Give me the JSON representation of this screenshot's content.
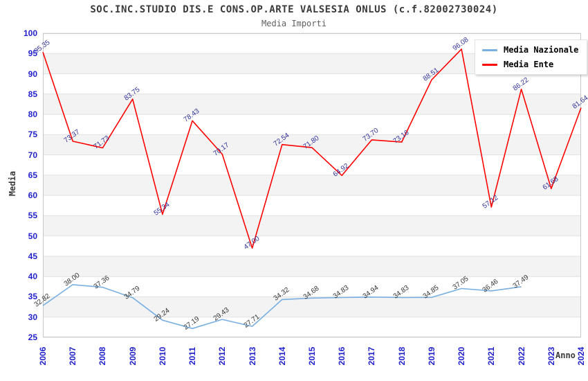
{
  "header": {
    "title": "SOC.INC.STUDIO DIS.E CONS.OP.ARTE VALSESIA ONLUS (c.f.82002730024)",
    "subtitle": "Media Importi"
  },
  "axes": {
    "y_label": "Media",
    "x_label": "Anno",
    "y_ticks": [
      100,
      95,
      90,
      85,
      80,
      75,
      70,
      65,
      60,
      55,
      50,
      45,
      40,
      35,
      30,
      25
    ]
  },
  "legend": {
    "items": [
      {
        "label": "Media Nazionale",
        "color": "#79afe1"
      },
      {
        "label": "Media Ente",
        "color": "#ff0000"
      }
    ]
  },
  "colors": {
    "tick_label": "#2222cc",
    "ente_value_label": "#333399",
    "nazionale_value_label": "#333333",
    "band_fill": "#f3f3f3",
    "gridline": "#e2e2e2",
    "plot_border": "#c8c8c8"
  },
  "chart_data": {
    "type": "line",
    "title": "SOC.INC.STUDIO DIS.E CONS.OP.ARTE VALSESIA ONLUS (c.f.82002730024)",
    "subtitle": "Media Importi",
    "xlabel": "Anno",
    "ylabel": "Media",
    "ylim": [
      25,
      100
    ],
    "ytick_step": 5,
    "grid": "horizontal-gridlines-with-alternating-bands",
    "legend_position": "top-right",
    "categories": [
      2006,
      2007,
      2008,
      2009,
      2010,
      2011,
      2012,
      2013,
      2014,
      2015,
      2016,
      2017,
      2018,
      2019,
      2020,
      2021,
      2022,
      2023,
      2024
    ],
    "series": [
      {
        "name": "Media Nazionale",
        "color": "#79afe1",
        "label_color": "#333333",
        "values": [
          32.82,
          38.0,
          37.36,
          34.79,
          29.24,
          27.19,
          29.43,
          27.71,
          34.32,
          34.68,
          34.83,
          34.94,
          34.83,
          34.85,
          37.05,
          36.46,
          37.49,
          null,
          null
        ]
      },
      {
        "name": "Media Ente",
        "color": "#ff0000",
        "label_color": "#333399",
        "values": [
          95.35,
          73.37,
          71.73,
          83.75,
          55.34,
          78.43,
          70.17,
          47.0,
          72.54,
          71.8,
          64.92,
          73.7,
          73.16,
          88.51,
          96.08,
          57.12,
          86.22,
          61.68,
          81.64
        ]
      }
    ]
  }
}
